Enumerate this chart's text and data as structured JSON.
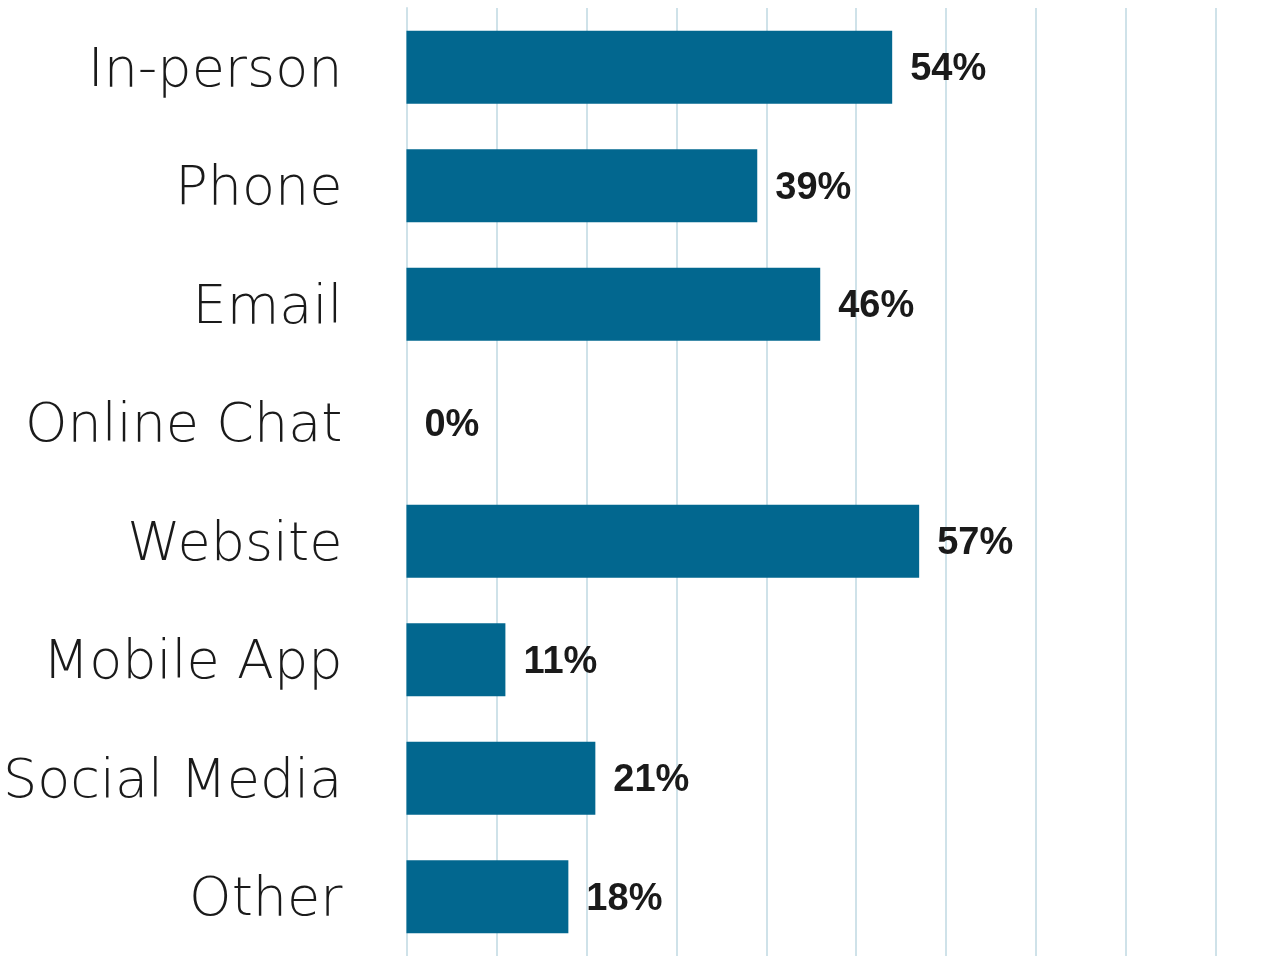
{
  "chart_data": {
    "type": "bar",
    "orientation": "horizontal",
    "categories": [
      "In-person",
      "Phone",
      "Email",
      "Online Chat",
      "Website",
      "Mobile App",
      "Social Media",
      "Other"
    ],
    "values": [
      54,
      39,
      46,
      0,
      57,
      11,
      21,
      18
    ],
    "value_labels": [
      "54%",
      "39%",
      "46%",
      "0%",
      "57%",
      "11%",
      "21%",
      "18%"
    ],
    "color": "#02678f",
    "xticks": [
      {
        "value": 0,
        "label": null
      },
      {
        "value": 10,
        "label": null
      },
      {
        "value": 20,
        "label": null
      },
      {
        "value": 30,
        "label": null
      },
      {
        "value": 40,
        "label": null
      },
      {
        "value": 50,
        "label": null
      },
      {
        "value": 60,
        "label": null
      },
      {
        "value": 70,
        "label": null
      },
      {
        "value": 80,
        "label": null
      },
      {
        "value": 90,
        "label": null
      }
    ],
    "grid": "x",
    "tick_labels": "y"
  }
}
